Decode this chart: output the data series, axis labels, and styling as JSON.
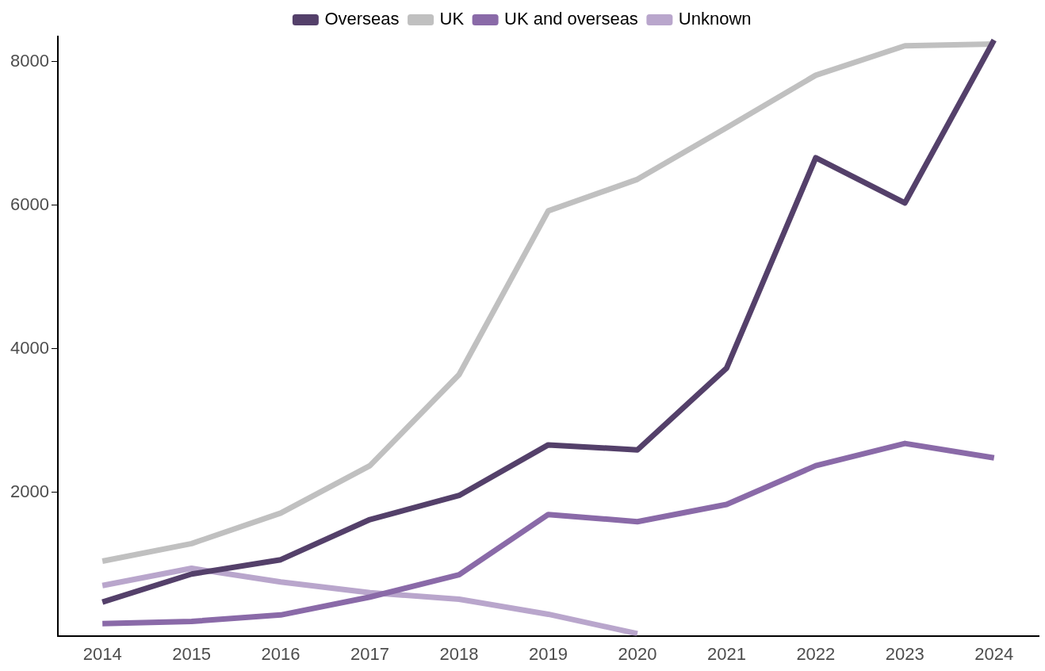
{
  "chart_data": {
    "type": "line",
    "categories": [
      "2014",
      "2015",
      "2016",
      "2017",
      "2018",
      "2019",
      "2020",
      "2021",
      "2022",
      "2023",
      "2024"
    ],
    "series": [
      {
        "name": "Overseas",
        "color": "#54406a",
        "values": [
          470,
          860,
          1060,
          1620,
          1955,
          2660,
          2590,
          3730,
          6660,
          6030,
          8300
        ]
      },
      {
        "name": "UK",
        "color": "#c0c0c0",
        "values": [
          1040,
          1285,
          1710,
          2370,
          3640,
          5920,
          6360,
          7080,
          7810,
          8220,
          8245
        ]
      },
      {
        "name": "UK and overseas",
        "color": "#8a6aa8",
        "values": [
          170,
          200,
          290,
          540,
          850,
          1690,
          1590,
          1830,
          2370,
          2680,
          2480
        ]
      },
      {
        "name": "Unknown",
        "color": "#b9a6cc",
        "values": [
          700,
          940,
          750,
          600,
          510,
          300,
          30,
          null,
          null,
          null,
          null
        ]
      }
    ],
    "ylim": [
      0,
      8350
    ],
    "yticks": [
      2000,
      4000,
      6000,
      8000
    ],
    "grid": false,
    "legend": "top",
    "marker": "none",
    "line_style": "solid"
  }
}
